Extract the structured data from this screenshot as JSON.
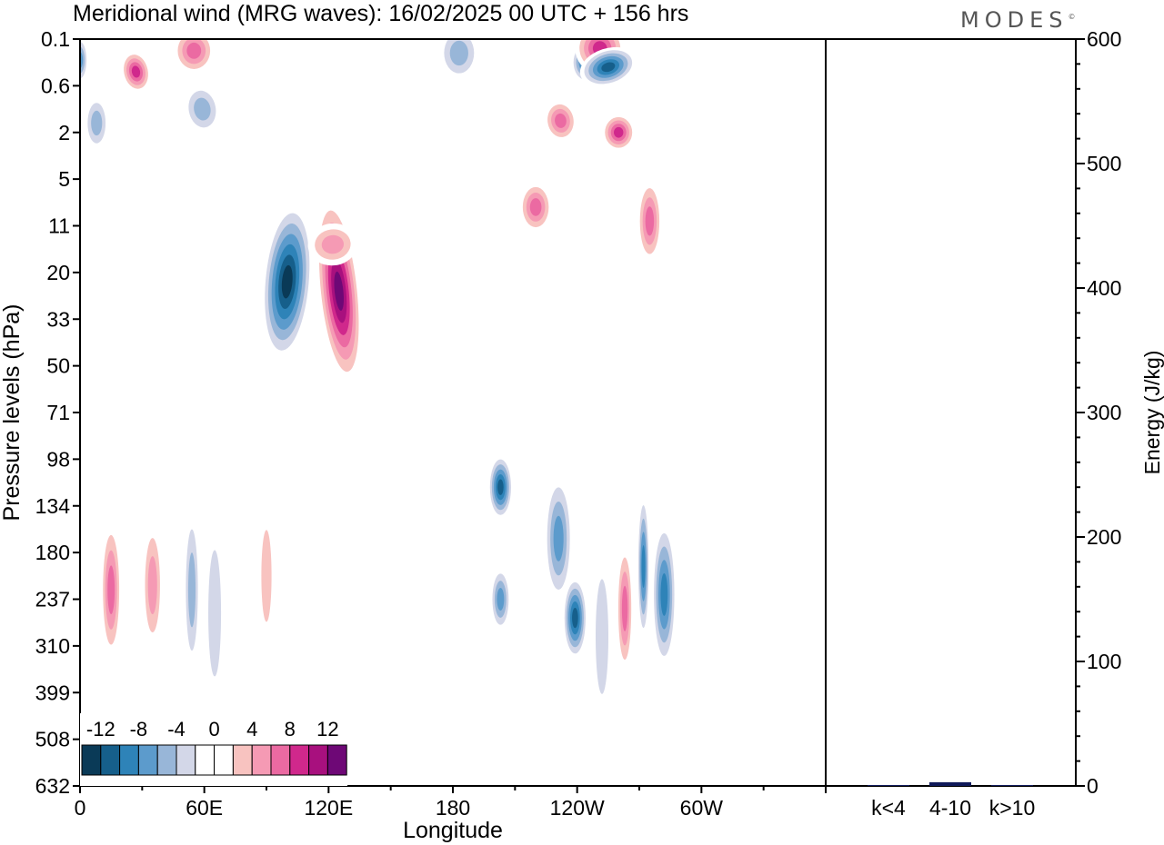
{
  "chart_data": {
    "type": "heatmap",
    "title": "Meridional wind (MRG waves):  16/02/2025  00 UTC  + 156 hrs",
    "xlabel": "Longitude",
    "ylabel": "Pressure levels (hPa)",
    "x_ticks": [
      "0",
      "60E",
      "120E",
      "180",
      "120W",
      "60W"
    ],
    "y_ticks": [
      "0.1",
      "0.6",
      "2",
      "5",
      "11",
      "20",
      "33",
      "50",
      "71",
      "98",
      "134",
      "180",
      "237",
      "310",
      "399",
      "508",
      "632"
    ],
    "colorbar_labels": [
      "-12",
      "-8",
      "-4",
      "0",
      "4",
      "8",
      "12"
    ],
    "colorbar_colors": [
      "#0a3a57",
      "#165f8b",
      "#2e83b8",
      "#5c9bcc",
      "#98b6d8",
      "#d3d7e8",
      "#ffffff",
      "#ffffff",
      "#f8c3c0",
      "#f59ab4",
      "#eb6aa2",
      "#d0288c",
      "#a8107e",
      "#6e0876"
    ],
    "blobs": [
      {
        "lon": 125,
        "lev": 5.4,
        "rlon": 10,
        "rlev": 2.0,
        "value": 14,
        "rot": -6
      },
      {
        "lon": 100,
        "lev": 5.2,
        "rlon": 12,
        "rlev": 1.7,
        "value": -14,
        "rot": 5
      },
      {
        "lon": 203,
        "lev": 9.6,
        "rlon": 6,
        "rlev": 0.7,
        "value": -12
      },
      {
        "lon": 203,
        "lev": 12.0,
        "rlon": 5,
        "rlev": 0.7,
        "value": -8
      },
      {
        "lon": 239,
        "lev": 12.4,
        "rlon": 6,
        "rlev": 0.9,
        "value": -11
      },
      {
        "lon": 231,
        "lev": 10.7,
        "rlon": 7,
        "rlev": 1.4,
        "value": -7
      },
      {
        "lon": 15,
        "lev": 11.8,
        "rlon": 5,
        "rlev": 1.5,
        "value": 8
      },
      {
        "lon": 35,
        "lev": 11.7,
        "rlon": 5,
        "rlev": 1.4,
        "value": 5
      },
      {
        "lon": 54,
        "lev": 11.8,
        "rlon": 4,
        "rlev": 1.8,
        "value": -5
      },
      {
        "lon": 65,
        "lev": 12.3,
        "rlon": 5,
        "rlev": 2.2,
        "value": -3
      },
      {
        "lon": 90,
        "lev": 11.5,
        "rlon": 4,
        "rlev": 1.6,
        "value": 4
      },
      {
        "lon": 253,
        "lev": 12.7,
        "rlon": 3,
        "rlev": 1.1,
        "value": -7
      },
      {
        "lon": 252,
        "lev": 12.8,
        "rlon": 5,
        "rlev": 2.0,
        "value": -4
      },
      {
        "lon": 263,
        "lev": 12.2,
        "rlon": 4,
        "rlev": 1.4,
        "value": 7
      },
      {
        "lon": 272,
        "lev": 11.3,
        "rlon": 3,
        "rlev": 1.6,
        "value": -9
      },
      {
        "lon": 282,
        "lev": 11.9,
        "rlon": 6,
        "rlev": 1.6,
        "value": -10
      },
      {
        "lon": 27,
        "lev": 0.7,
        "rlon": 7,
        "rlev": 0.45,
        "value": 9,
        "rot": -12
      },
      {
        "lon": 59,
        "lev": 1.5,
        "rlon": 9,
        "rlev": 0.55,
        "value": -6,
        "rot": -10
      },
      {
        "lon": 8,
        "lev": 1.8,
        "rlon": 6,
        "rlev": 0.6,
        "value": -5
      },
      {
        "lon": 55,
        "lev": 0.25,
        "rlon": 10,
        "rlev": 0.5,
        "value": 8
      },
      {
        "lon": 183,
        "lev": 0.3,
        "rlon": 10,
        "rlev": 0.6,
        "value": -5
      },
      {
        "lon": 244,
        "lev": 0.5,
        "rlon": 7,
        "rlev": 0.45,
        "value": -9
      },
      {
        "lon": 251,
        "lev": 0.2,
        "rlon": 12,
        "rlev": 0.55,
        "value": 10,
        "rot": -15
      },
      {
        "lon": 255,
        "lev": 0.6,
        "rlon": 14,
        "rlev": 0.4,
        "value": -12,
        "rot": -18
      },
      {
        "lon": 232,
        "lev": 1.75,
        "rlon": 8,
        "rlev": 0.45,
        "value": 8,
        "rot": -8
      },
      {
        "lon": 260,
        "lev": 2.0,
        "rlon": 8,
        "rlev": 0.4,
        "value": 10
      },
      {
        "lon": 0,
        "lev": 0.45,
        "rlon": 4,
        "rlev": 0.5,
        "value": -8
      },
      {
        "lon": 220,
        "lev": 3.6,
        "rlon": 8,
        "rlev": 0.55,
        "value": 7
      },
      {
        "lon": 275,
        "lev": 3.9,
        "rlon": 6,
        "rlev": 0.9,
        "value": 7
      },
      {
        "lon": 122,
        "lev": 4.4,
        "rlon": 12,
        "rlev": 0.45,
        "value": 5,
        "rot": -6
      }
    ]
  },
  "logo": {
    "text": "MODES",
    "mark": "©"
  },
  "energy_panel": {
    "ylabel": "Energy (J/kg)",
    "y_ticks": [
      "0",
      "100",
      "200",
      "300",
      "400",
      "500",
      "600"
    ],
    "ylim": [
      0,
      600
    ],
    "categories": [
      "k<4",
      "4-10",
      "k>10"
    ],
    "values": [
      0.3,
      1.2,
      0.2
    ]
  }
}
